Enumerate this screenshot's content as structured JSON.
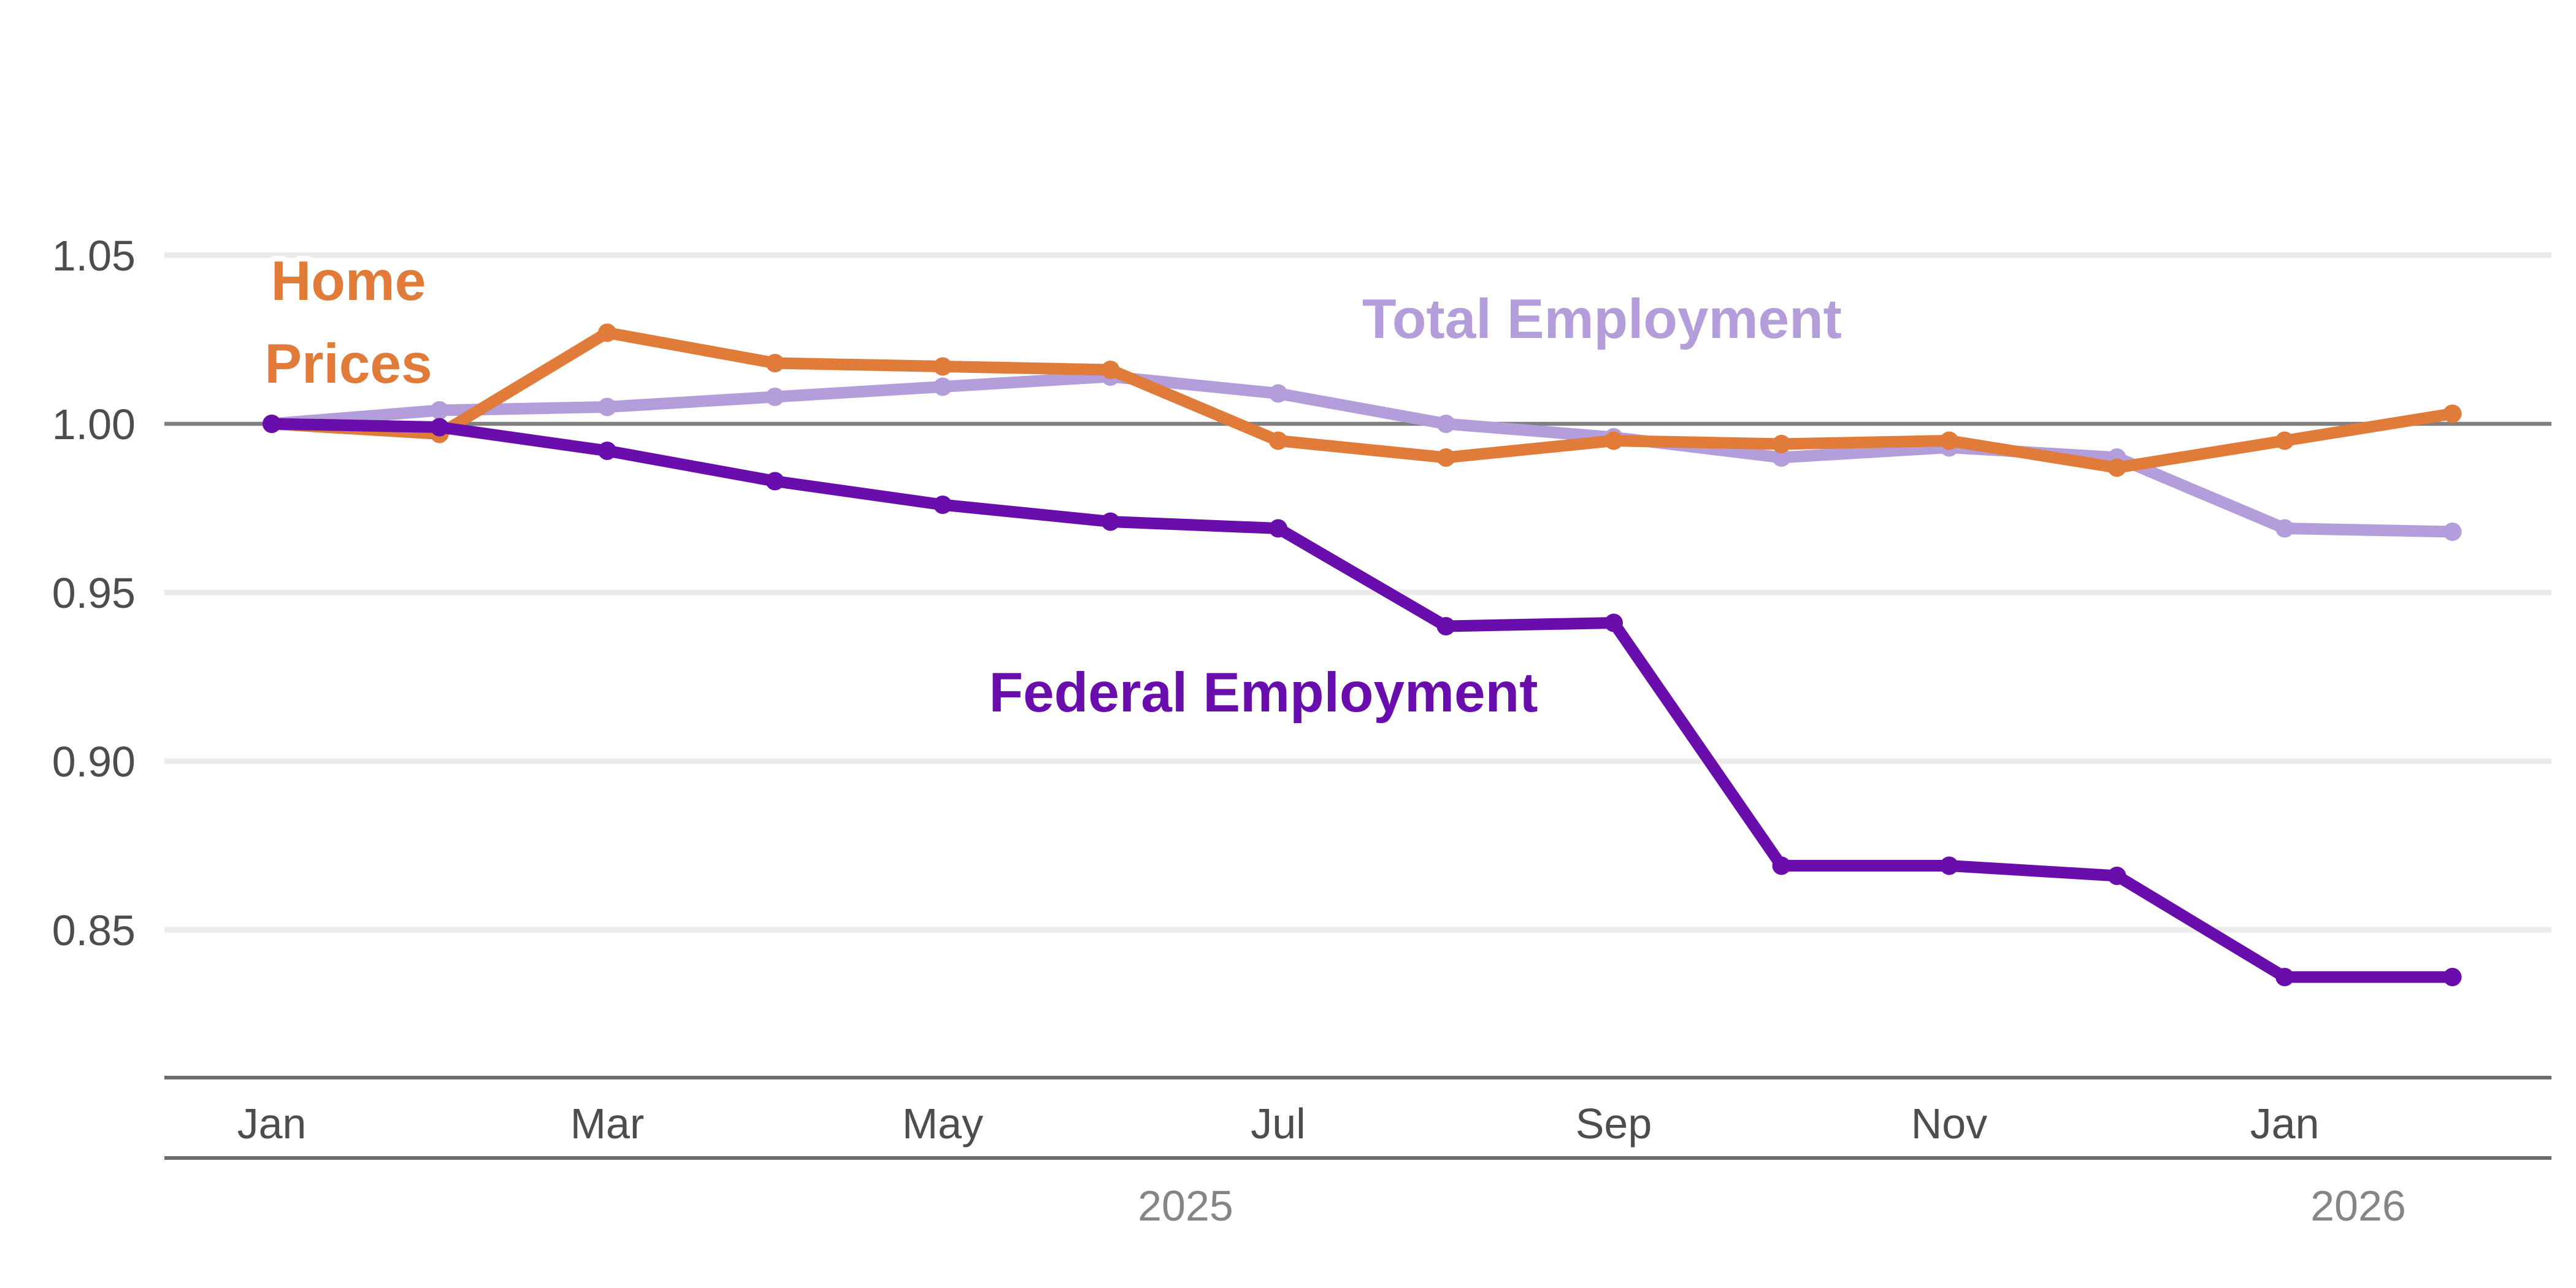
{
  "chart_data": {
    "type": "line",
    "x": [
      "2025-01",
      "2025-02",
      "2025-03",
      "2025-04",
      "2025-05",
      "2025-06",
      "2025-07",
      "2025-08",
      "2025-09",
      "2025-10",
      "2025-11",
      "2025-12",
      "2026-01",
      "2026-02"
    ],
    "x_tick_labels": [
      "Jan",
      "Mar",
      "May",
      "Jul",
      "Sep",
      "Nov",
      "Jan"
    ],
    "year_labels": [
      "2025",
      "2026"
    ],
    "y_tick_labels": [
      "1.05",
      "1.00",
      "0.95",
      "0.90",
      "0.85"
    ],
    "y_ticks": [
      1.05,
      1.0,
      0.95,
      0.9,
      0.85
    ],
    "ylim": [
      0.805,
      1.1
    ],
    "reference_line": 1.0,
    "grid": true,
    "legend": "direct labels",
    "series": [
      {
        "name": "Total Employment",
        "label_lines": [
          "Total Employment"
        ],
        "color": "#b39ddb",
        "values": [
          1.0,
          1.004,
          1.005,
          1.008,
          1.011,
          1.014,
          1.009,
          1.0,
          0.996,
          0.99,
          0.993,
          0.99,
          0.969,
          0.968
        ]
      },
      {
        "name": "Home Prices",
        "label_lines": [
          "Home",
          "Prices"
        ],
        "color": "#e07b39",
        "values": [
          1.0,
          0.997,
          1.027,
          1.018,
          1.017,
          1.016,
          0.995,
          0.99,
          0.995,
          0.994,
          0.995,
          0.987,
          0.995,
          1.003
        ]
      },
      {
        "name": "Federal Employment",
        "label_lines": [
          "Federal Employment"
        ],
        "color": "#6a0dad",
        "values": [
          1.0,
          0.999,
          0.992,
          0.983,
          0.976,
          0.971,
          0.969,
          0.94,
          0.941,
          0.869,
          0.869,
          0.866,
          0.836,
          0.836
        ]
      }
    ]
  }
}
